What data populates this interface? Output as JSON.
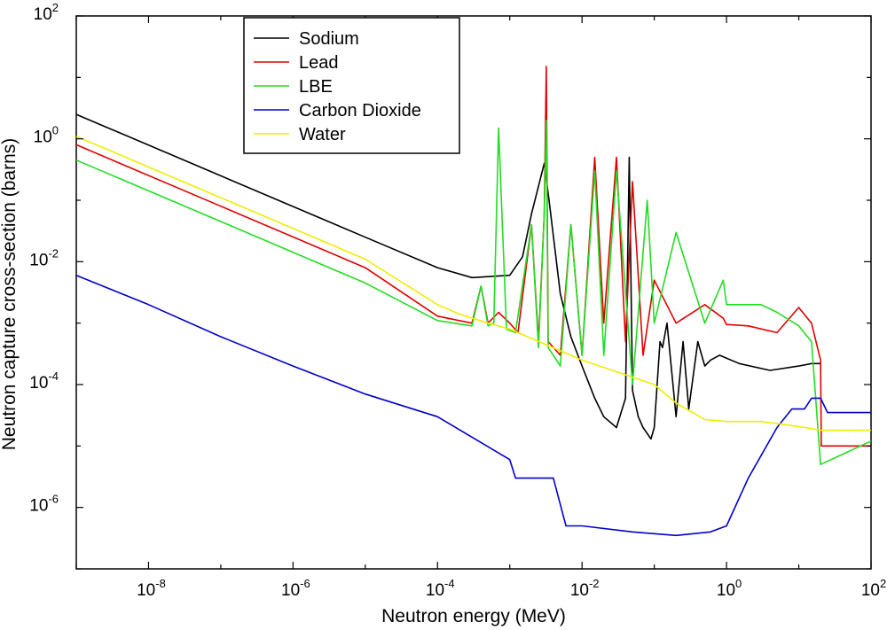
{
  "chart_data": {
    "type": "line",
    "title": "",
    "xlabel": "Neutron energy (MeV)",
    "ylabel": "Neutron capture cross-section (barns)",
    "x_scale": "log",
    "y_scale": "log",
    "xlim": [
      1e-09,
      100
    ],
    "ylim": [
      1e-07,
      100
    ],
    "x_ticks": [
      {
        "base": "10",
        "exp": "-8",
        "value": 1e-08
      },
      {
        "base": "10",
        "exp": "-6",
        "value": 1e-06
      },
      {
        "base": "10",
        "exp": "-4",
        "value": 0.0001
      },
      {
        "base": "10",
        "exp": "-2",
        "value": 0.01
      },
      {
        "base": "10",
        "exp": "0",
        "value": 1
      },
      {
        "base": "10",
        "exp": "2",
        "value": 100
      }
    ],
    "y_ticks": [
      {
        "base": "10",
        "exp": "-6",
        "value": 1e-06
      },
      {
        "base": "10",
        "exp": "-4",
        "value": 0.0001
      },
      {
        "base": "10",
        "exp": "-2",
        "value": 0.01
      },
      {
        "base": "10",
        "exp": "0",
        "value": 1
      },
      {
        "base": "10",
        "exp": "2",
        "value": 100
      }
    ],
    "grid": false,
    "legend_position": "top-left",
    "series": [
      {
        "name": "Sodium",
        "color": "#000000",
        "points": [
          [
            1e-09,
            2.5
          ],
          [
            1e-07,
            0.25
          ],
          [
            1e-05,
            0.025
          ],
          [
            0.0001,
            0.008
          ],
          [
            0.0003,
            0.0055
          ],
          [
            0.001,
            0.006
          ],
          [
            0.0015,
            0.012
          ],
          [
            0.002,
            0.06
          ],
          [
            0.003,
            0.4
          ],
          [
            0.0035,
            0.1
          ],
          [
            0.005,
            0.003
          ],
          [
            0.007,
            0.0006
          ],
          [
            0.01,
            0.0002
          ],
          [
            0.015,
            6e-05
          ],
          [
            0.02,
            3e-05
          ],
          [
            0.03,
            2e-05
          ],
          [
            0.04,
            6e-05
          ],
          [
            0.045,
            0.5
          ],
          [
            0.05,
            8e-05
          ],
          [
            0.06,
            3e-05
          ],
          [
            0.07,
            2e-05
          ],
          [
            0.09,
            1.3e-05
          ],
          [
            0.1,
            2e-05
          ],
          [
            0.12,
            0.0005
          ],
          [
            0.13,
            0.0004
          ],
          [
            0.15,
            0.001
          ],
          [
            0.2,
            3e-05
          ],
          [
            0.25,
            0.0005
          ],
          [
            0.3,
            4e-05
          ],
          [
            0.4,
            0.0005
          ],
          [
            0.5,
            0.0002
          ],
          [
            0.6,
            0.00025
          ],
          [
            0.8,
            0.0003
          ],
          [
            1.5,
            0.00022
          ],
          [
            4,
            0.00017
          ],
          [
            10,
            0.0002
          ],
          [
            15,
            0.00022
          ],
          [
            20,
            0.00022
          ]
        ]
      },
      {
        "name": "Lead",
        "color": "#e00000",
        "points": [
          [
            1e-09,
            0.8
          ],
          [
            1e-07,
            0.08
          ],
          [
            1e-05,
            0.008
          ],
          [
            0.0001,
            0.0013
          ],
          [
            0.0003,
            0.001
          ],
          [
            0.0004,
            0.004
          ],
          [
            0.0005,
            0.001
          ],
          [
            0.0007,
            0.0015
          ],
          [
            0.001,
            0.001
          ],
          [
            0.0013,
            0.0007
          ],
          [
            0.002,
            0.04
          ],
          [
            0.0025,
            0.0005
          ],
          [
            0.003,
            0.06
          ],
          [
            0.0032,
            15
          ],
          [
            0.0034,
            0.0005
          ],
          [
            0.005,
            0.0003
          ],
          [
            0.007,
            0.04
          ],
          [
            0.01,
            0.0003
          ],
          [
            0.015,
            0.5
          ],
          [
            0.02,
            0.001
          ],
          [
            0.03,
            0.5
          ],
          [
            0.04,
            0.0005
          ],
          [
            0.05,
            0.2
          ],
          [
            0.07,
            0.0003
          ],
          [
            0.1,
            0.005
          ],
          [
            0.2,
            0.001
          ],
          [
            0.5,
            0.002
          ],
          [
            0.9,
            0.0012
          ],
          [
            1,
            0.00095
          ],
          [
            2,
            0.0009
          ],
          [
            5,
            0.0007
          ],
          [
            10,
            0.0018
          ],
          [
            15,
            0.001
          ],
          [
            20,
            0.00025
          ],
          [
            20.5,
            1e-05
          ],
          [
            100,
            1e-05
          ]
        ]
      },
      {
        "name": "LBE",
        "color": "#22dd22",
        "points": [
          [
            1e-09,
            0.45
          ],
          [
            1e-07,
            0.045
          ],
          [
            1e-05,
            0.0045
          ],
          [
            0.0001,
            0.0011
          ],
          [
            0.0003,
            0.0009
          ],
          [
            0.0004,
            0.004
          ],
          [
            0.0005,
            0.0009
          ],
          [
            0.0006,
            0.001
          ],
          [
            0.0007,
            1.5
          ],
          [
            0.0009,
            0.0008
          ],
          [
            0.0012,
            0.0007
          ],
          [
            0.002,
            0.04
          ],
          [
            0.0025,
            0.0004
          ],
          [
            0.003,
            0.06
          ],
          [
            0.0032,
            2
          ],
          [
            0.0034,
            0.0004
          ],
          [
            0.004,
            0.0003
          ],
          [
            0.005,
            0.0002
          ],
          [
            0.007,
            0.04
          ],
          [
            0.01,
            0.0003
          ],
          [
            0.015,
            0.3
          ],
          [
            0.02,
            0.0003
          ],
          [
            0.03,
            0.3
          ],
          [
            0.05,
            0.0001
          ],
          [
            0.08,
            0.1
          ],
          [
            0.1,
            0.001
          ],
          [
            0.2,
            0.03
          ],
          [
            0.5,
            0.001
          ],
          [
            0.9,
            0.005
          ],
          [
            1,
            0.002
          ],
          [
            2,
            0.002
          ],
          [
            3,
            0.002
          ],
          [
            5,
            0.0015
          ],
          [
            10,
            0.0009
          ],
          [
            15,
            0.0005
          ],
          [
            20,
            5e-06
          ],
          [
            100,
            1.2e-05
          ]
        ]
      },
      {
        "name": "Carbon Dioxide",
        "color": "#0000cc",
        "points": [
          [
            1e-09,
            0.006
          ],
          [
            1e-08,
            0.002
          ],
          [
            1e-07,
            0.0006
          ],
          [
            1e-06,
            0.0002
          ],
          [
            1e-05,
            7e-05
          ],
          [
            0.0001,
            3e-05
          ],
          [
            0.001,
            6e-06
          ],
          [
            0.0012,
            3e-06
          ],
          [
            0.004,
            3e-06
          ],
          [
            0.006,
            5e-07
          ],
          [
            0.01,
            5e-07
          ],
          [
            0.05,
            4e-07
          ],
          [
            0.2,
            3.5e-07
          ],
          [
            0.6,
            4e-07
          ],
          [
            1,
            5e-07
          ],
          [
            2,
            3e-06
          ],
          [
            5,
            2e-05
          ],
          [
            8,
            4e-05
          ],
          [
            12,
            4e-05
          ],
          [
            15,
            6e-05
          ],
          [
            20,
            6e-05
          ],
          [
            25,
            3.5e-05
          ],
          [
            100,
            3.5e-05
          ]
        ]
      },
      {
        "name": "Water",
        "color": "#eeee00",
        "points": [
          [
            1e-09,
            1.1
          ],
          [
            1e-07,
            0.11
          ],
          [
            1e-05,
            0.011
          ],
          [
            0.0001,
            0.002
          ],
          [
            0.0002,
            0.0014
          ],
          [
            0.0005,
            0.001
          ],
          [
            0.001,
            0.0008
          ],
          [
            0.01,
            0.00025
          ],
          [
            0.1,
            0.0001
          ],
          [
            0.2,
            5e-05
          ],
          [
            0.5,
            2.7e-05
          ],
          [
            1,
            2.5e-05
          ],
          [
            3,
            2.5e-05
          ],
          [
            7,
            2.2e-05
          ],
          [
            12,
            2e-05
          ],
          [
            20,
            1.8e-05
          ],
          [
            100,
            1.8e-05
          ]
        ]
      }
    ]
  }
}
